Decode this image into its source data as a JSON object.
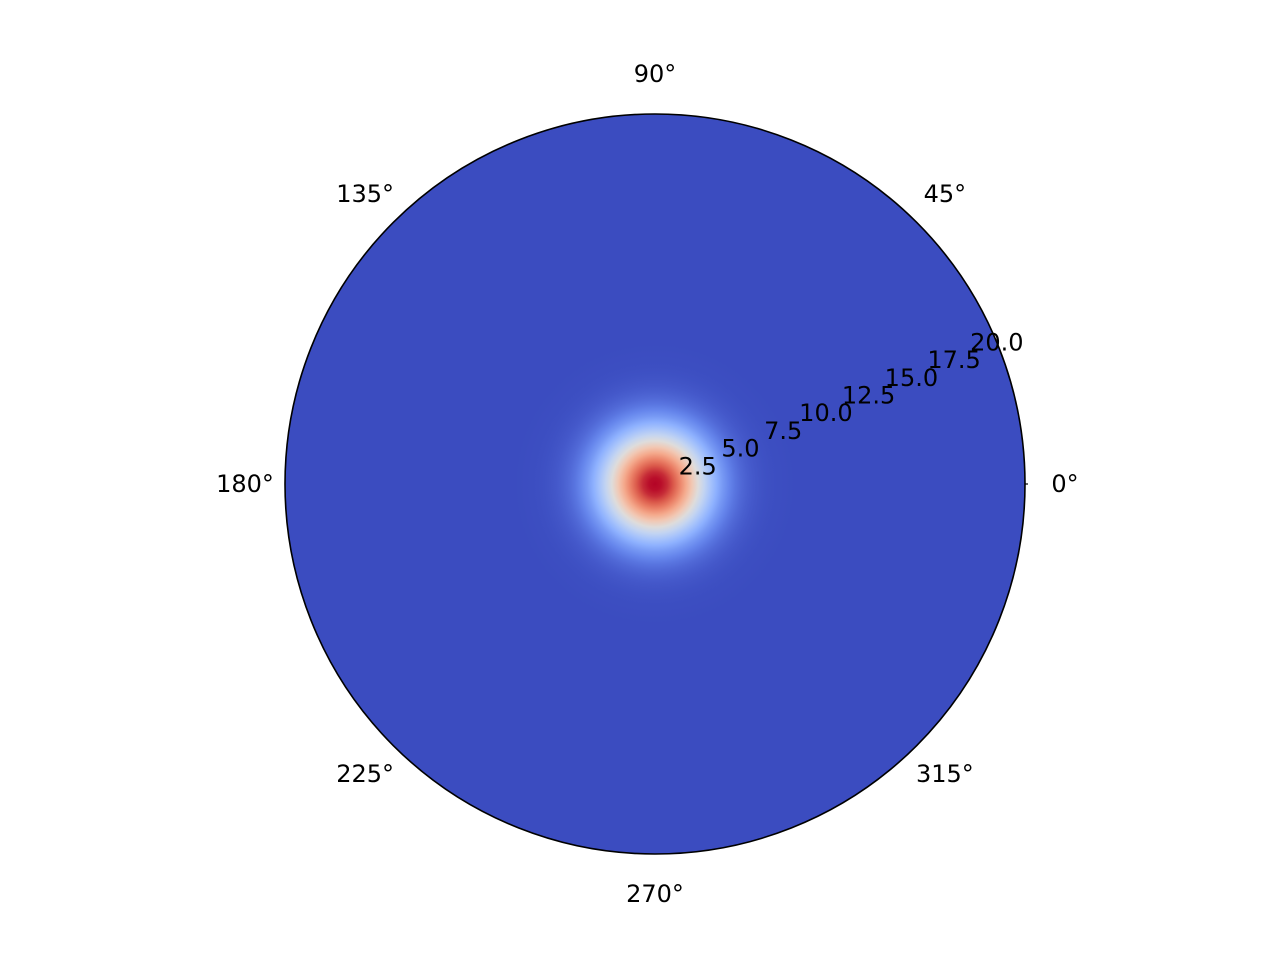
{
  "chart_data": {
    "type": "heatmap",
    "projection": "polar",
    "title": "",
    "grid": false,
    "angular_ticks": [
      "0°",
      "45°",
      "90°",
      "135°",
      "180°",
      "225°",
      "270°",
      "315°"
    ],
    "angular_tick_degrees": [
      0,
      45,
      90,
      135,
      180,
      225,
      270,
      315
    ],
    "radial_ticks": [
      "2.5",
      "5.0",
      "7.5",
      "10.0",
      "12.5",
      "15.0",
      "17.5",
      "20.0"
    ],
    "radial_tick_values": [
      2.5,
      5.0,
      7.5,
      10.0,
      12.5,
      15.0,
      17.5,
      20.0
    ],
    "radial_label_angle_degrees": 22.5,
    "rlim": [
      0,
      20
    ],
    "theta_range_degrees": [
      0,
      360
    ],
    "colormap": "coolwarm",
    "field": {
      "form": "gaussian",
      "center_r": 0,
      "sigma_r": 2.0,
      "description_values": {
        "peak_at_r": 0,
        "background_from_r": 7.5
      }
    },
    "colors": {
      "background": "#3b4cc0",
      "peak": "#b40426",
      "outline": "#000000"
    }
  }
}
